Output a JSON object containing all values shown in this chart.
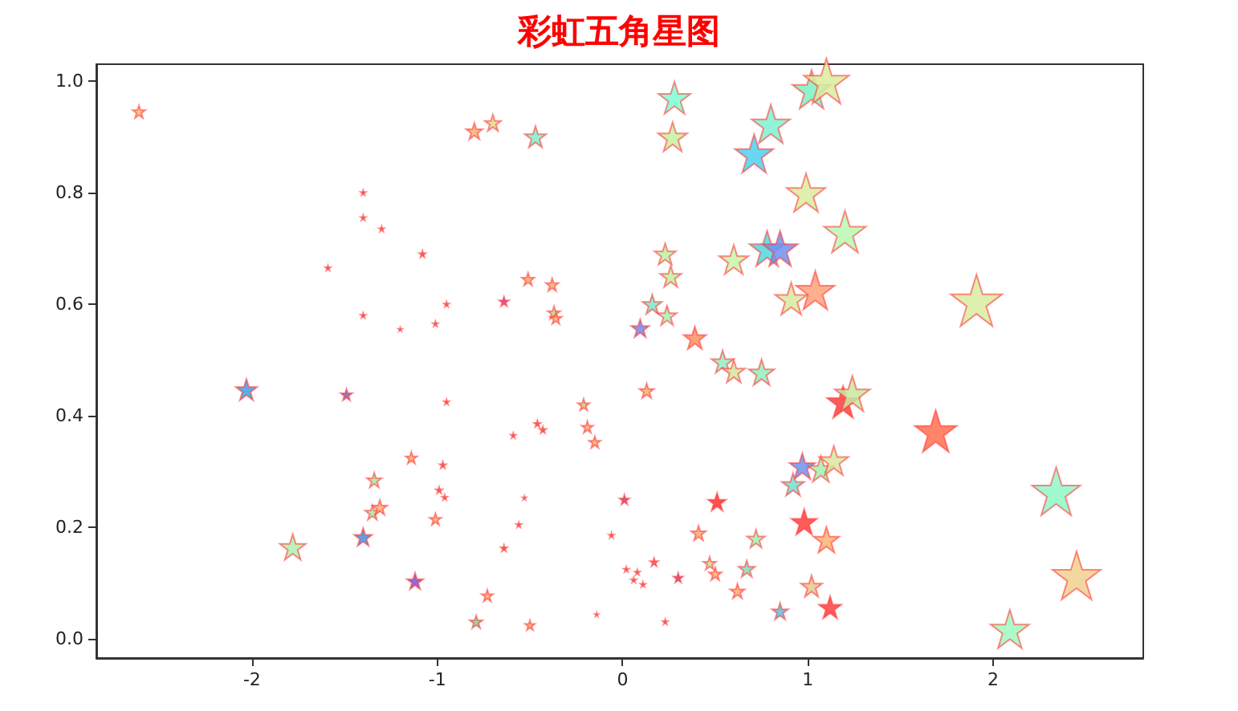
{
  "chart_data": {
    "type": "bubble",
    "title": "彩虹五角星图",
    "marker": "star",
    "grid": false,
    "xlim": [
      -2.84,
      2.81
    ],
    "xticks": [
      -2,
      -1,
      0,
      1,
      2
    ],
    "ylim": [
      -0.034,
      1.03
    ],
    "yticks": [
      {
        "value": 0,
        "label": "0.0"
      },
      0.2,
      0.4,
      0.6,
      0.8,
      {
        "value": 1,
        "label": "1.0"
      }
    ],
    "x": [
      -2.61,
      -0.8,
      -0.7,
      -0.47,
      -1.4,
      -1.4,
      -1.3,
      -1.08,
      -1.59,
      -1.4,
      -1.2,
      -1.01,
      -0.95,
      -0.64,
      -0.51,
      -0.38,
      -0.37,
      -0.36,
      0.28,
      0.27,
      1.02,
      1.1,
      0.8,
      0.71,
      0.99,
      1.2,
      0.78,
      0.85,
      0.23,
      0.26,
      0.6,
      0.91,
      1.04,
      1.91,
      0.16,
      0.24,
      0.095,
      0.39,
      0.54,
      0.6,
      0.75,
      0.13,
      1.19,
      1.24,
      1.69,
      0.97,
      0.92,
      1.07,
      1.14,
      2.34,
      2.45,
      2.09,
      0.51,
      0.01,
      0.98,
      1.1,
      0.41,
      0.72,
      0.47,
      0.5,
      0.67,
      0.62,
      0.3,
      0.17,
      0.02,
      0.08,
      0.06,
      0.11,
      -0.06,
      0.23,
      1.02,
      1.12,
      0.85,
      -2.03,
      -1.49,
      -0.95,
      -0.21,
      -0.46,
      -0.43,
      -0.19,
      -0.15,
      -0.59,
      -1.14,
      -0.97,
      -1.34,
      -0.99,
      -0.96,
      -0.53,
      -1.35,
      -1.31,
      -1.01,
      -0.56,
      -1.4,
      -1.78,
      -0.64,
      -1.12,
      -0.73,
      -0.14,
      -0.79,
      -0.5
    ],
    "values": [
      0.945,
      0.91,
      0.925,
      0.9,
      0.8,
      0.755,
      0.735,
      0.69,
      0.665,
      0.58,
      0.555,
      0.565,
      0.6,
      0.605,
      0.645,
      0.635,
      0.585,
      0.575,
      0.97,
      0.9,
      0.985,
      1.0,
      0.923,
      0.87,
      0.8,
      0.73,
      0.7,
      0.7,
      0.69,
      0.65,
      0.68,
      0.61,
      0.625,
      0.607,
      0.6,
      0.58,
      0.557,
      0.54,
      0.497,
      0.48,
      0.478,
      0.445,
      0.425,
      0.44,
      0.373,
      0.31,
      0.277,
      0.305,
      0.32,
      0.265,
      0.114,
      0.018,
      0.246,
      0.25,
      0.21,
      0.178,
      0.19,
      0.18,
      0.136,
      0.117,
      0.126,
      0.086,
      0.11,
      0.138,
      0.125,
      0.12,
      0.106,
      0.098,
      0.186,
      0.031,
      0.095,
      0.057,
      0.05,
      0.447,
      0.438,
      0.425,
      0.42,
      0.386,
      0.375,
      0.38,
      0.353,
      0.365,
      0.325,
      0.312,
      0.285,
      0.267,
      0.254,
      0.253,
      0.227,
      0.236,
      0.215,
      0.205,
      0.183,
      0.165,
      0.163,
      0.104,
      0.078,
      0.044,
      0.031,
      0.025
    ],
    "sizes": [
      0.06,
      0.1,
      0.1,
      0.17,
      0.01,
      0.01,
      0.01,
      0.016,
      0.01,
      0.01,
      0.005,
      0.01,
      0.01,
      0.035,
      0.06,
      0.06,
      0.06,
      0.05,
      0.39,
      0.32,
      0.56,
      0.77,
      0.56,
      0.56,
      0.56,
      0.66,
      0.47,
      0.47,
      0.17,
      0.17,
      0.32,
      0.39,
      0.56,
      1.0,
      0.14,
      0.14,
      0.12,
      0.19,
      0.19,
      0.19,
      0.25,
      0.08,
      0.39,
      0.47,
      0.66,
      0.25,
      0.19,
      0.25,
      0.32,
      0.88,
      0.88,
      0.56,
      0.12,
      0.035,
      0.25,
      0.25,
      0.08,
      0.12,
      0.06,
      0.06,
      0.1,
      0.08,
      0.035,
      0.025,
      0.01,
      0.01,
      0.01,
      0.01,
      0.01,
      0.01,
      0.17,
      0.19,
      0.1,
      0.17,
      0.05,
      0.01,
      0.05,
      0.016,
      0.016,
      0.05,
      0.05,
      0.01,
      0.05,
      0.016,
      0.08,
      0.016,
      0.01,
      0.005,
      0.08,
      0.08,
      0.05,
      0.01,
      0.12,
      0.25,
      0.016,
      0.1,
      0.05,
      0.005,
      0.06,
      0.035
    ],
    "colors": [
      "#fcbf6e",
      "#fcb070",
      "#e6d88c",
      "#7fefc8",
      "#ff5050",
      "#ff5050",
      "#ff5050",
      "#ff5050",
      "#ff5050",
      "#ff5050",
      "#ff5050",
      "#ff5050",
      "#ff5050",
      "#c040a0",
      "#fcb070",
      "#fcb070",
      "#b0e0a0",
      "#fcb070",
      "#7fffd4",
      "#c8f0a0",
      "#80f0c0",
      "#d8eca0",
      "#80f0d0",
      "#50d0f0",
      "#d8eca0",
      "#b8f8b0",
      "#50d8e0",
      "#7090f0",
      "#c0f0a0",
      "#c0f0a0",
      "#c8f5a8",
      "#d8e8a0",
      "#ffa07a",
      "#d8eca0",
      "#80e8c8",
      "#a8f0b0",
      "#7088f0",
      "#ff9060",
      "#90f0c0",
      "#d0e8a0",
      "#90f0c0",
      "#fcb070",
      "#ff4040",
      "#c8e8a0",
      "#ff7050",
      "#7090f0",
      "#70e0d0",
      "#a0f0b0",
      "#d8e8a0",
      "#90f8c8",
      "#f0d090",
      "#a0f8c0",
      "#ff3030",
      "#c04080",
      "#ff4040",
      "#ffb070",
      "#fcb070",
      "#a0f0b0",
      "#c8e0a0",
      "#fcb070",
      "#80e0c0",
      "#fcb070",
      "#c04080",
      "#ff5050",
      "#ff5050",
      "#ff5050",
      "#ff5050",
      "#ff5050",
      "#ff5050",
      "#ff5050",
      "#e8c890",
      "#ff4040",
      "#60c0e0",
      "#40a0e0",
      "#8060c0",
      "#ff5050",
      "#c8d080",
      "#ff5050",
      "#ff5050",
      "#fcb070",
      "#fcb070",
      "#ff5050",
      "#fcb070",
      "#ff5050",
      "#b0e0a0",
      "#ff5050",
      "#ff5050",
      "#ff5050",
      "#b0e0a0",
      "#fcb070",
      "#fcb070",
      "#ff5050",
      "#4090e0",
      "#b0f0b0",
      "#ff5050",
      "#8050d0",
      "#fcb070",
      "#ff5050",
      "#80d0a0",
      "#fcb070"
    ]
  }
}
